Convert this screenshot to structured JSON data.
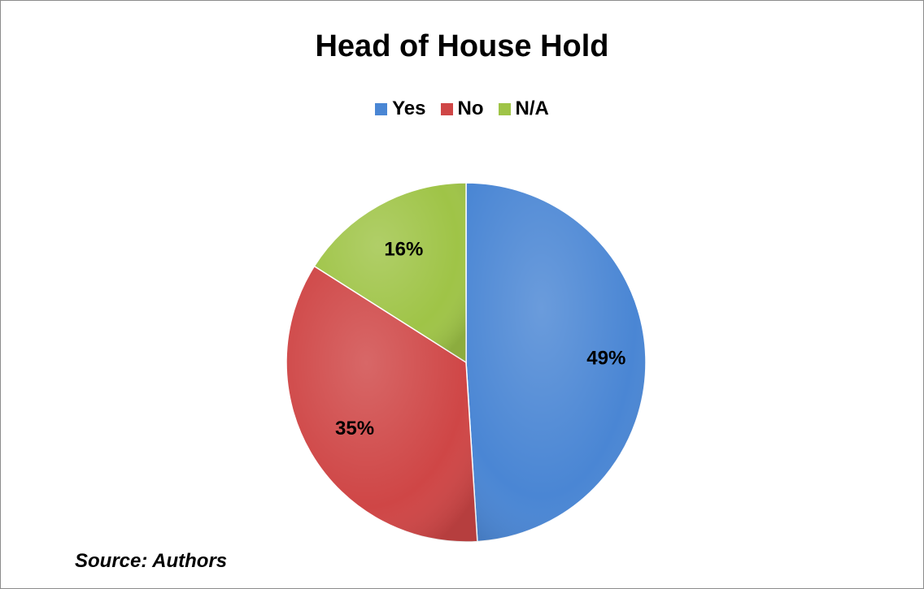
{
  "chart_data": {
    "type": "pie",
    "title": "Head of House Hold",
    "categories": [
      "Yes",
      "No",
      "N/A"
    ],
    "values": [
      49,
      35,
      16
    ],
    "labels": [
      "49%",
      "35%",
      "16%"
    ],
    "colors": [
      "#4a86d4",
      "#cf4646",
      "#9fc447"
    ],
    "legend": "top"
  },
  "source_text": "Source: Authors"
}
